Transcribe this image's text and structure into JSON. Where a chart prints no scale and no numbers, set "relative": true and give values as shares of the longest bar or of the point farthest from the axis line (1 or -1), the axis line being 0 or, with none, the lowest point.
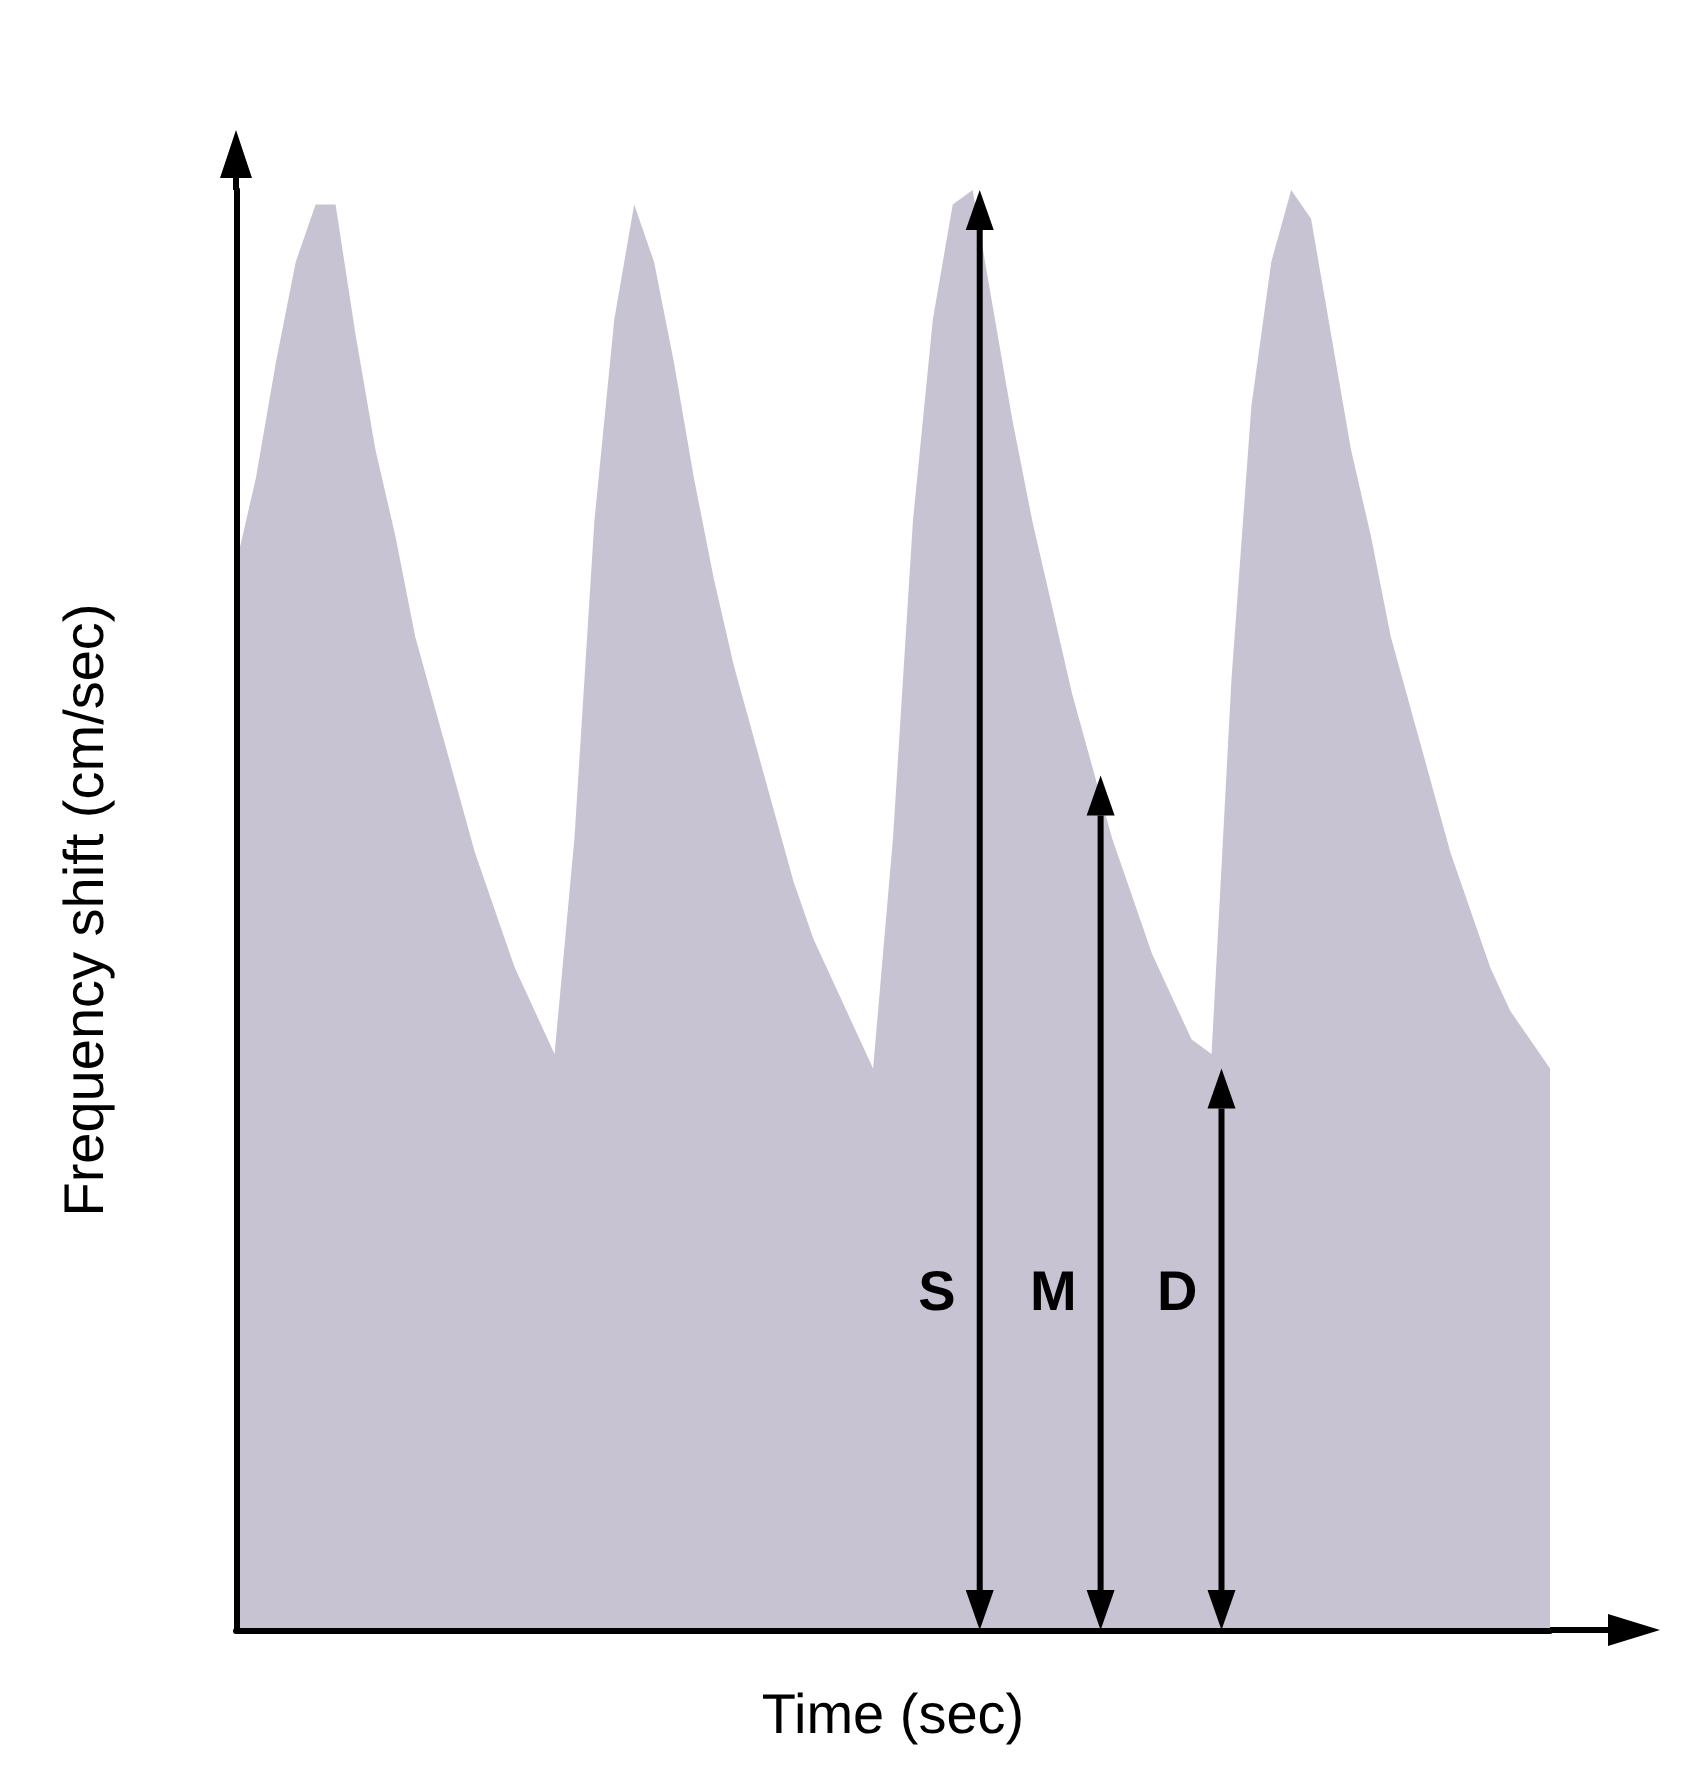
{
  "chart_data": {
    "type": "area",
    "relative": true,
    "xlabel": "Time (sec)",
    "ylabel": "Frequency shift (cm/sec)",
    "color": "#c8c3d3",
    "grid": false,
    "marker": "none",
    "categories": [
      null,
      null,
      null,
      null,
      null,
      null,
      null,
      null,
      null,
      null,
      null,
      null,
      null,
      null,
      null,
      null,
      null,
      null,
      null,
      null,
      null,
      null,
      null,
      null,
      null,
      null,
      null,
      null,
      null,
      null,
      null,
      null,
      null,
      null,
      null,
      null,
      null,
      null,
      null,
      null,
      null,
      null,
      null,
      null,
      null,
      null,
      null,
      null,
      null,
      null,
      null,
      null,
      null,
      null,
      null,
      null,
      null,
      null,
      null,
      null,
      null,
      null,
      null,
      null,
      null,
      null,
      null
    ],
    "values": [
      0.74,
      0.8,
      0.88,
      0.95,
      0.99,
      0.99,
      0.9,
      0.82,
      0.76,
      0.69,
      0.64,
      0.59,
      0.54,
      0.5,
      0.46,
      0.43,
      0.4,
      0.55,
      0.77,
      0.91,
      0.99,
      0.95,
      0.88,
      0.8,
      0.73,
      0.67,
      0.62,
      0.57,
      0.52,
      0.48,
      0.45,
      0.42,
      0.39,
      0.55,
      0.77,
      0.91,
      0.99,
      1.0,
      0.92,
      0.84,
      0.77,
      0.71,
      0.65,
      0.6,
      0.55,
      0.51,
      0.47,
      0.44,
      0.41,
      0.4,
      0.66,
      0.85,
      0.95,
      1.0,
      0.98,
      0.9,
      0.82,
      0.76,
      0.69,
      0.64,
      0.59,
      0.54,
      0.5,
      0.46,
      0.43,
      0.41,
      0.39
    ],
    "annotations": [
      "S",
      "M",
      "D"
    ]
  }
}
